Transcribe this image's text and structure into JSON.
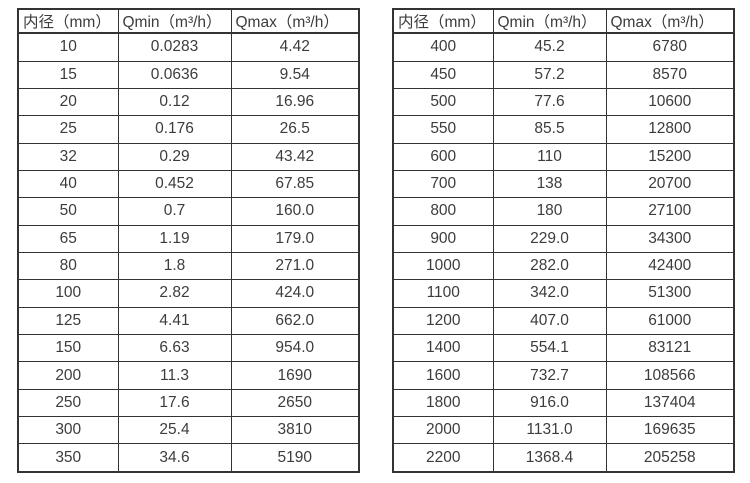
{
  "colors": {
    "border": "#333333",
    "text": "#3c3c3c",
    "background": "#ffffff"
  },
  "tables": [
    {
      "name": "flow-table-small-diameters",
      "headers": [
        "内径（mm）",
        "Qmin（m³/h）",
        "Qmax（m³/h）"
      ],
      "rows": [
        [
          "10",
          "0.0283",
          "4.42"
        ],
        [
          "15",
          "0.0636",
          "9.54"
        ],
        [
          "20",
          "0.12",
          "16.96"
        ],
        [
          "25",
          "0.176",
          "26.5"
        ],
        [
          "32",
          "0.29",
          "43.42"
        ],
        [
          "40",
          "0.452",
          "67.85"
        ],
        [
          "50",
          "0.7",
          "160.0"
        ],
        [
          "65",
          "1.19",
          "179.0"
        ],
        [
          "80",
          "1.8",
          "271.0"
        ],
        [
          "100",
          "2.82",
          "424.0"
        ],
        [
          "125",
          "4.41",
          "662.0"
        ],
        [
          "150",
          "6.63",
          "954.0"
        ],
        [
          "200",
          "11.3",
          "1690"
        ],
        [
          "250",
          "17.6",
          "2650"
        ],
        [
          "300",
          "25.4",
          "3810"
        ],
        [
          "350",
          "34.6",
          "5190"
        ]
      ]
    },
    {
      "name": "flow-table-large-diameters",
      "headers": [
        "内径（mm）",
        "Qmin（m³/h）",
        "Qmax（m³/h）"
      ],
      "rows": [
        [
          "400",
          "45.2",
          "6780"
        ],
        [
          "450",
          "57.2",
          "8570"
        ],
        [
          "500",
          "77.6",
          "10600"
        ],
        [
          "550",
          "85.5",
          "12800"
        ],
        [
          "600",
          "110",
          "15200"
        ],
        [
          "700",
          "138",
          "20700"
        ],
        [
          "800",
          "180",
          "27100"
        ],
        [
          "900",
          "229.0",
          "34300"
        ],
        [
          "1000",
          "282.0",
          "42400"
        ],
        [
          "1100",
          "342.0",
          "51300"
        ],
        [
          "1200",
          "407.0",
          "61000"
        ],
        [
          "1400",
          "554.1",
          "83121"
        ],
        [
          "1600",
          "732.7",
          "108566"
        ],
        [
          "1800",
          "916.0",
          "137404"
        ],
        [
          "2000",
          "1131.0",
          "169635"
        ],
        [
          "2200",
          "1368.4",
          "205258"
        ]
      ]
    }
  ]
}
